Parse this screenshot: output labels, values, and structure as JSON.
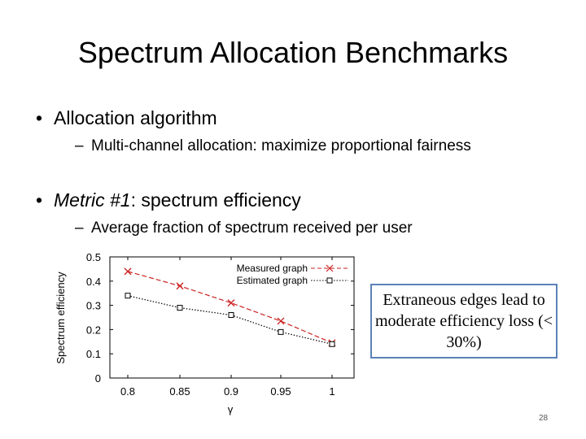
{
  "slide": {
    "title": "Spectrum Allocation Benchmarks",
    "bullets": [
      {
        "text": "Allocation algorithm",
        "sub": "Multi-channel allocation: maximize proportional fairness"
      },
      {
        "text_prefix": "Metric #1",
        "text_rest": ": spectrum efficiency",
        "sub": "Average fraction of spectrum received per user"
      }
    ],
    "callout": "Extraneous edges lead to moderate efficiency loss (< 30%)",
    "page_number": "28"
  },
  "chart_data": {
    "type": "line",
    "title": "",
    "xlabel": "γ",
    "ylabel": "Spectrum efficiency",
    "x": [
      0.8,
      0.85,
      0.9,
      0.95,
      1
    ],
    "xtick_labels": [
      "0.8",
      "0.85",
      "0.9",
      "0.95",
      "1"
    ],
    "ytick_labels": [
      "0",
      "0.1",
      "0.2",
      "0.3",
      "0.4",
      "0.5"
    ],
    "ylim": [
      0,
      0.5
    ],
    "xlim": [
      0.8,
      1
    ],
    "legend_position": "top-right",
    "series": [
      {
        "name": "Measured graph",
        "values": [
          0.44,
          0.38,
          0.31,
          0.235,
          0.145
        ],
        "color": "#cc2222",
        "marker": "x",
        "dash": "dashed"
      },
      {
        "name": "Estimated graph",
        "values": [
          0.34,
          0.29,
          0.26,
          0.19,
          0.14
        ],
        "color": "#000000",
        "marker": "square",
        "dash": "dotted"
      }
    ]
  }
}
